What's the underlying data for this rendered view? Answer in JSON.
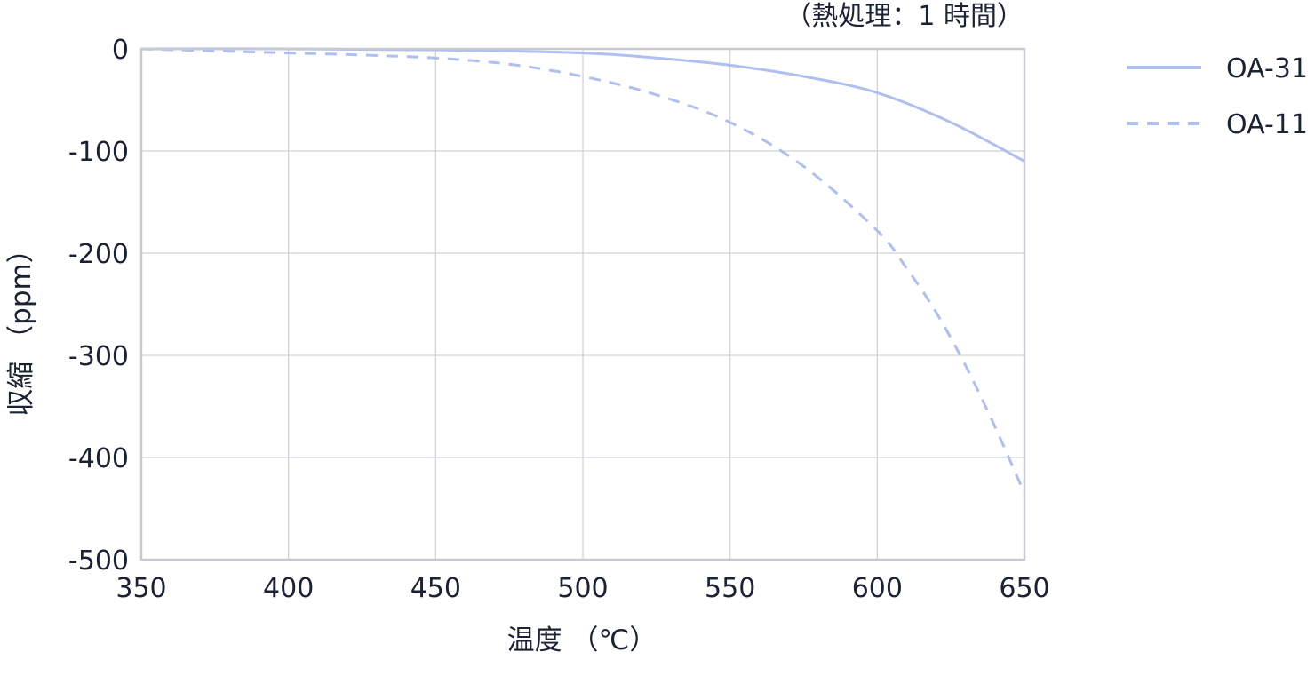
{
  "chart_data": {
    "type": "line",
    "title": "",
    "note": "（熱処理：1 時間）",
    "xlabel": "温度 （℃）",
    "ylabel": "収縮 （ppm）",
    "xlim": [
      350,
      650
    ],
    "ylim": [
      -500,
      0
    ],
    "xticks": [
      350,
      400,
      450,
      500,
      550,
      600,
      650
    ],
    "yticks": [
      0,
      -100,
      -200,
      -300,
      -400,
      -500
    ],
    "grid": true,
    "legend_position": "right",
    "series": [
      {
        "name": "OA-31",
        "color": "#aebff0",
        "style": "solid",
        "x": [
          350,
          400,
          450,
          500,
          525,
          550,
          575,
          600,
          625,
          650
        ],
        "y": [
          0,
          0,
          -1,
          -4,
          -9,
          -16,
          -27,
          -43,
          -72,
          -110
        ]
      },
      {
        "name": "OA-11",
        "color": "#aebff0",
        "style": "dashed",
        "x": [
          350,
          375,
          400,
          425,
          450,
          475,
          500,
          525,
          550,
          575,
          600,
          610,
          620,
          630,
          640,
          650
        ],
        "y": [
          0,
          -2,
          -4,
          -6,
          -9,
          -15,
          -27,
          -45,
          -72,
          -115,
          -178,
          -215,
          -258,
          -310,
          -370,
          -435
        ]
      }
    ]
  }
}
